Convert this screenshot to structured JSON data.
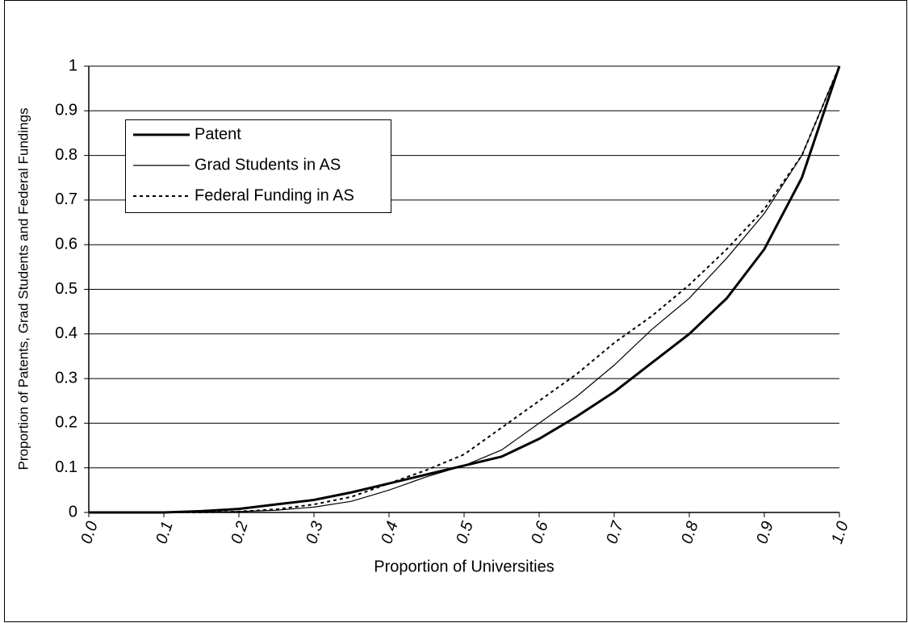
{
  "chart_data": {
    "type": "line",
    "x_label": "Proportion of Universities",
    "y_label": "Proportion of Patents, Grad Students and Federal Fundings",
    "x": [
      0,
      0.05,
      0.1,
      0.15,
      0.2,
      0.25,
      0.3,
      0.35,
      0.4,
      0.45,
      0.5,
      0.55,
      0.6,
      0.65,
      0.7,
      0.75,
      0.8,
      0.85,
      0.9,
      0.95,
      1
    ],
    "series": [
      {
        "name": "Patent",
        "color": "#000000",
        "line_width": 3,
        "dashed": false,
        "values": [
          0,
          0,
          0,
          0.003,
          0.008,
          0.018,
          0.028,
          0.045,
          0.065,
          0.085,
          0.105,
          0.125,
          0.165,
          0.215,
          0.27,
          0.335,
          0.4,
          0.48,
          0.59,
          0.75,
          1
        ]
      },
      {
        "name": "Grad Students in AS",
        "color": "#000000",
        "line_width": 1.2,
        "dashed": false,
        "values": [
          0,
          0,
          0,
          0,
          0.002,
          0.005,
          0.012,
          0.025,
          0.05,
          0.08,
          0.105,
          0.14,
          0.2,
          0.26,
          0.33,
          0.41,
          0.48,
          0.57,
          0.67,
          0.8,
          1
        ]
      },
      {
        "name": "Federal Funding in AS",
        "color": "#000000",
        "line_width": 2,
        "dashed": true,
        "values": [
          0,
          0,
          0,
          0,
          0.002,
          0.007,
          0.018,
          0.035,
          0.065,
          0.095,
          0.13,
          0.19,
          0.25,
          0.31,
          0.38,
          0.44,
          0.51,
          0.59,
          0.68,
          0.8,
          1
        ]
      }
    ],
    "xlim": [
      0,
      1
    ],
    "xticks": [
      {
        "value": 0,
        "label": "0.0"
      },
      0.1,
      0.2,
      0.3,
      0.4,
      0.5,
      0.6,
      0.7,
      0.8,
      0.9,
      {
        "value": 1,
        "label": "1.0"
      }
    ],
    "ylim": [
      0,
      1
    ],
    "yticks": [
      0,
      0.1,
      0.2,
      0.3,
      0.4,
      0.5,
      0.6,
      0.7,
      0.8,
      0.9,
      1
    ],
    "grid": true
  }
}
